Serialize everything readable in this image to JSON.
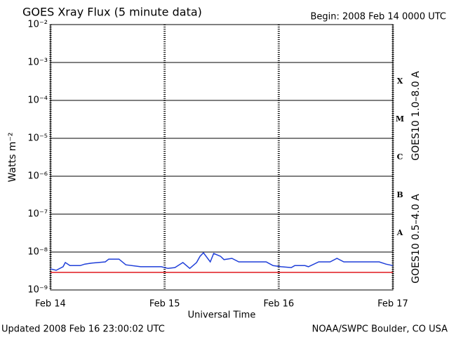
{
  "chart_data": {
    "type": "line",
    "title": "GOES Xray Flux (5 minute data)",
    "subtitle": "Begin:  2008 Feb 14 0000 UTC",
    "y_label": "Watts m⁻²",
    "x_label": "Universal Time",
    "footer_left": "Updated 2008 Feb 16 23:00:02 UTC",
    "footer_right": "NOAA/SWPC Boulder, CO USA",
    "flare_classes": [
      "X",
      "M",
      "C",
      "B",
      "A"
    ],
    "yscale": "log",
    "ylim": [
      1e-09,
      0.01
    ],
    "yticks": [
      {
        "value": 1e-09,
        "label": "10⁻⁹"
      },
      {
        "value": 1e-08,
        "label": "10⁻⁸"
      },
      {
        "value": 1e-07,
        "label": "10⁻⁷"
      },
      {
        "value": 1e-06,
        "label": "10⁻⁶"
      },
      {
        "value": 1e-05,
        "label": "10⁻⁵"
      },
      {
        "value": 0.0001,
        "label": "10⁻⁴"
      },
      {
        "value": 0.001,
        "label": "10⁻³"
      },
      {
        "value": 0.01,
        "label": "10⁻²"
      }
    ],
    "xlim": [
      0,
      3
    ],
    "xticks": [
      {
        "value": 0,
        "label": "Feb 14"
      },
      {
        "value": 1,
        "label": "Feb 15"
      },
      {
        "value": 2,
        "label": "Feb 16"
      },
      {
        "value": 3,
        "label": "Feb 17"
      }
    ],
    "grid": true,
    "series": [
      {
        "name": "GOES10 1.0–8.0 A",
        "color": "#e0191f",
        "x": [
          0,
          3
        ],
        "values": [
          2.9e-09,
          2.9e-09
        ]
      },
      {
        "name": "GOES10 0.5–4.0 A",
        "color": "#1f3fd9",
        "x": [
          0,
          0.05,
          0.11,
          0.13,
          0.17,
          0.26,
          0.3,
          0.36,
          0.48,
          0.51,
          0.6,
          0.66,
          0.79,
          0.97,
          1.03,
          1.09,
          1.16,
          1.22,
          1.28,
          1.31,
          1.34,
          1.4,
          1.43,
          1.49,
          1.52,
          1.59,
          1.65,
          1.89,
          1.95,
          2.02,
          2.11,
          2.14,
          2.23,
          2.26,
          2.35,
          2.45,
          2.51,
          2.57,
          2.88,
          2.94,
          3.0
        ],
        "values": [
          3.6e-09,
          3.3e-09,
          4.1e-09,
          5.3e-09,
          4.4e-09,
          4.4e-09,
          4.8e-09,
          5.1e-09,
          5.5e-09,
          6.5e-09,
          6.5e-09,
          4.6e-09,
          4.1e-09,
          4.1e-09,
          3.7e-09,
          3.9e-09,
          5.3e-09,
          3.7e-09,
          5.3e-09,
          7.7e-09,
          9.6e-09,
          5.5e-09,
          9.2e-09,
          7.7e-09,
          6.3e-09,
          6.8e-09,
          5.5e-09,
          5.5e-09,
          4.4e-09,
          4.1e-09,
          3.9e-09,
          4.4e-09,
          4.4e-09,
          4.1e-09,
          5.5e-09,
          5.5e-09,
          6.8e-09,
          5.5e-09,
          5.5e-09,
          4.8e-09,
          4.4e-09
        ]
      }
    ]
  }
}
